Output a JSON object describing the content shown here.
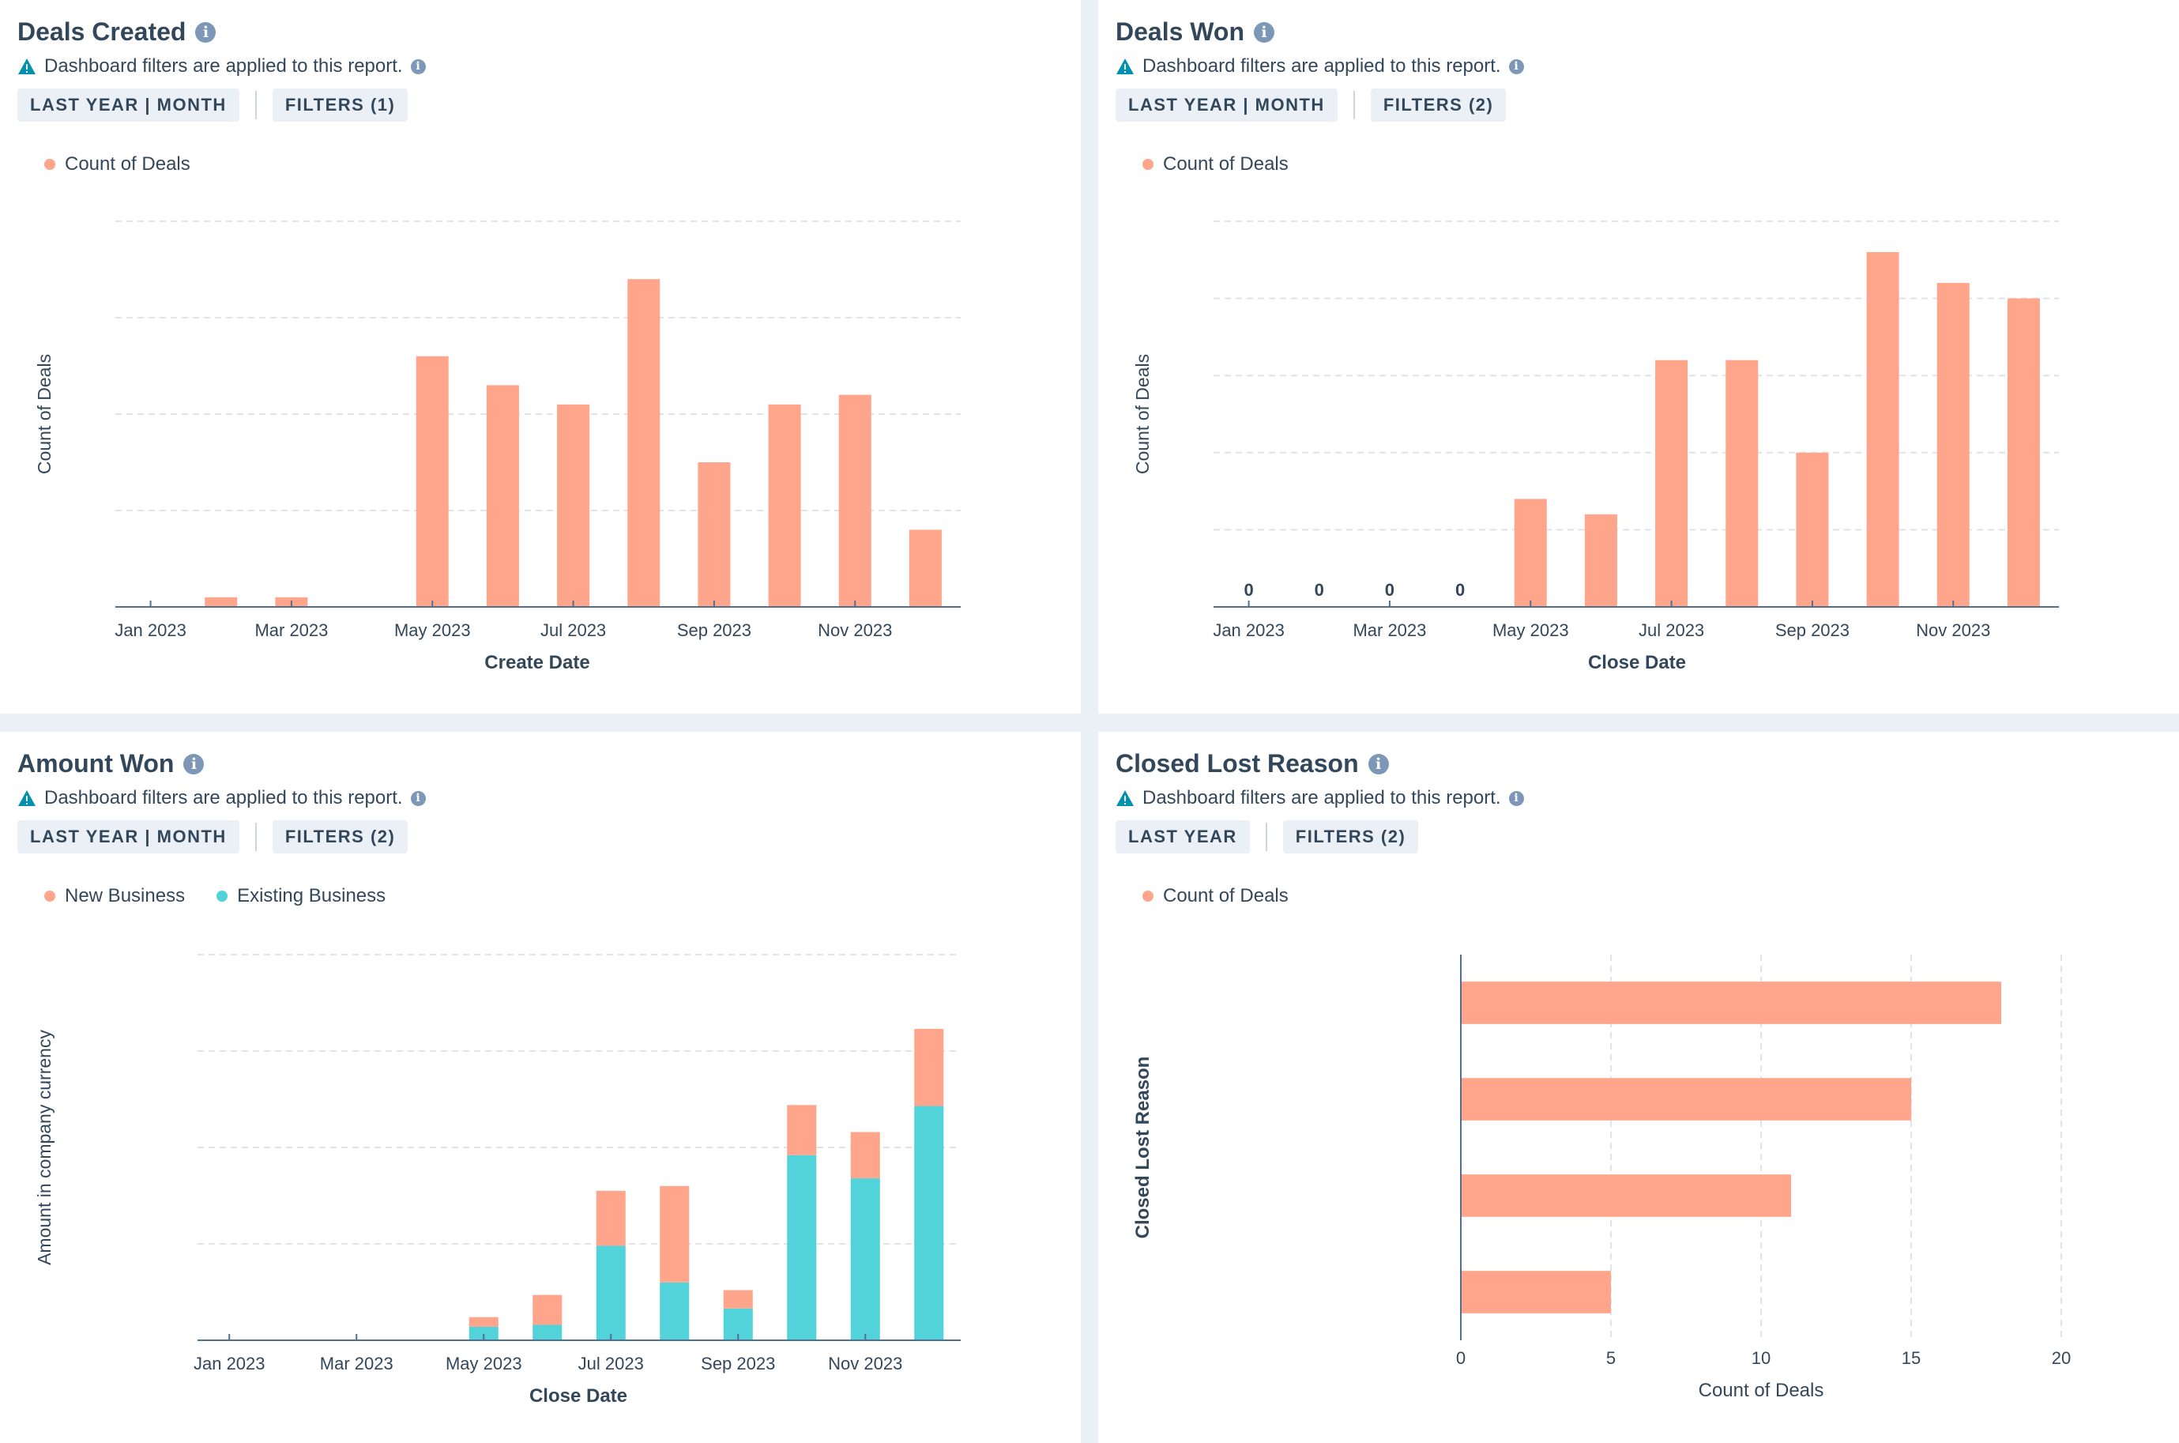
{
  "colors": {
    "orange": "#ffa58c",
    "teal": "#51d3d9",
    "axis": "#516f90",
    "grid": "#dfe3eb",
    "text": "#33475b",
    "icon": "#7c98b6",
    "warn": "#0091ae"
  },
  "icons": {
    "info": "info-icon",
    "warning": "warning-icon"
  },
  "panels": {
    "deals_created": {
      "title": "Deals Created",
      "info_glyph": "i",
      "notice": "Dashboard filters are applied to this report.",
      "chips": [
        "LAST YEAR | MONTH",
        "FILTERS (1)"
      ],
      "legend": [
        "Count of Deals"
      ]
    },
    "deals_won": {
      "title": "Deals Won",
      "info_glyph": "i",
      "notice": "Dashboard filters are applied to this report.",
      "chips": [
        "LAST YEAR | MONTH",
        "FILTERS (2)"
      ],
      "legend": [
        "Count of Deals"
      ]
    },
    "amount_won": {
      "title": "Amount Won",
      "info_glyph": "i",
      "notice": "Dashboard filters are applied to this report.",
      "chips": [
        "LAST YEAR | MONTH",
        "FILTERS (2)"
      ],
      "legend": [
        "New Business",
        "Existing Business"
      ]
    },
    "closed_lost_reason": {
      "title": "Closed Lost Reason",
      "info_glyph": "i",
      "notice": "Dashboard filters are applied to this report.",
      "chips": [
        "LAST YEAR",
        "FILTERS (2)"
      ],
      "legend": [
        "Count of Deals"
      ]
    }
  },
  "chart_data": [
    {
      "id": "deals_created",
      "type": "bar",
      "title": "Deals Created",
      "xlabel": "Create Date",
      "ylabel": "Count of Deals",
      "categories": [
        "Jan 2023",
        "Feb 2023",
        "Mar 2023",
        "Apr 2023",
        "May 2023",
        "Jun 2023",
        "Jul 2023",
        "Aug 2023",
        "Sep 2023",
        "Oct 2023",
        "Nov 2023",
        "Dec 2023"
      ],
      "tick_labels": [
        "Jan 2023",
        "Mar 2023",
        "May 2023",
        "Jul 2023",
        "Sep 2023",
        "Nov 2023"
      ],
      "values": [
        0,
        1,
        1,
        0,
        26,
        23,
        21,
        34,
        15,
        21,
        22,
        8
      ],
      "ylim": [
        0,
        40
      ],
      "gridlines": 4,
      "grid": true,
      "legend": [
        "Count of Deals"
      ],
      "legend_position": "top-left"
    },
    {
      "id": "deals_won",
      "type": "bar",
      "title": "Deals Won",
      "xlabel": "Close Date",
      "ylabel": "Count of Deals",
      "categories": [
        "Jan 2023",
        "Feb 2023",
        "Mar 2023",
        "Apr 2023",
        "May 2023",
        "Jun 2023",
        "Jul 2023",
        "Aug 2023",
        "Sep 2023",
        "Oct 2023",
        "Nov 2023",
        "Dec 2023"
      ],
      "tick_labels": [
        "Jan 2023",
        "Mar 2023",
        "May 2023",
        "Jul 2023",
        "Sep 2023",
        "Nov 2023"
      ],
      "values": [
        0,
        0,
        0,
        0,
        7,
        6,
        16,
        16,
        10,
        23,
        21,
        20
      ],
      "zero_labels": [
        "0",
        "0",
        "0",
        "0"
      ],
      "ylim": [
        0,
        25
      ],
      "gridlines": 5,
      "grid": true,
      "legend": [
        "Count of Deals"
      ],
      "legend_position": "top-left"
    },
    {
      "id": "amount_won",
      "type": "bar",
      "stacked": true,
      "title": "Amount Won",
      "xlabel": "Close Date",
      "ylabel": "Amount in company currency",
      "categories": [
        "Jan 2023",
        "Feb 2023",
        "Mar 2023",
        "Apr 2023",
        "May 2023",
        "Jun 2023",
        "Jul 2023",
        "Aug 2023",
        "Sep 2023",
        "Oct 2023",
        "Nov 2023",
        "Dec 2023"
      ],
      "tick_labels": [
        "Jan 2023",
        "Mar 2023",
        "May 2023",
        "Jul 2023",
        "Sep 2023",
        "Nov 2023"
      ],
      "series": [
        {
          "name": "Existing Business",
          "values": [
            0,
            0,
            0,
            0,
            14,
            16,
            98,
            60,
            33,
            192,
            168,
            243
          ]
        },
        {
          "name": "New Business",
          "values": [
            0,
            0,
            0,
            0,
            10,
            31,
            57,
            100,
            19,
            52,
            48,
            80
          ]
        }
      ],
      "ylim": [
        0,
        400
      ],
      "gridlines": 4,
      "grid": true,
      "legend": [
        "New Business",
        "Existing Business"
      ],
      "legend_position": "top-left"
    },
    {
      "id": "closed_lost_reason",
      "type": "bar",
      "orientation": "horizontal",
      "title": "Closed Lost Reason",
      "xlabel": "Count of Deals",
      "ylabel": "Closed Lost Reason",
      "categories": [
        "",
        "",
        "",
        ""
      ],
      "values": [
        18,
        15,
        11,
        5
      ],
      "xlim": [
        0,
        20
      ],
      "xticks": [
        "0",
        "5",
        "10",
        "15",
        "20"
      ],
      "grid": true,
      "legend": [
        "Count of Deals"
      ],
      "legend_position": "top-left"
    }
  ]
}
